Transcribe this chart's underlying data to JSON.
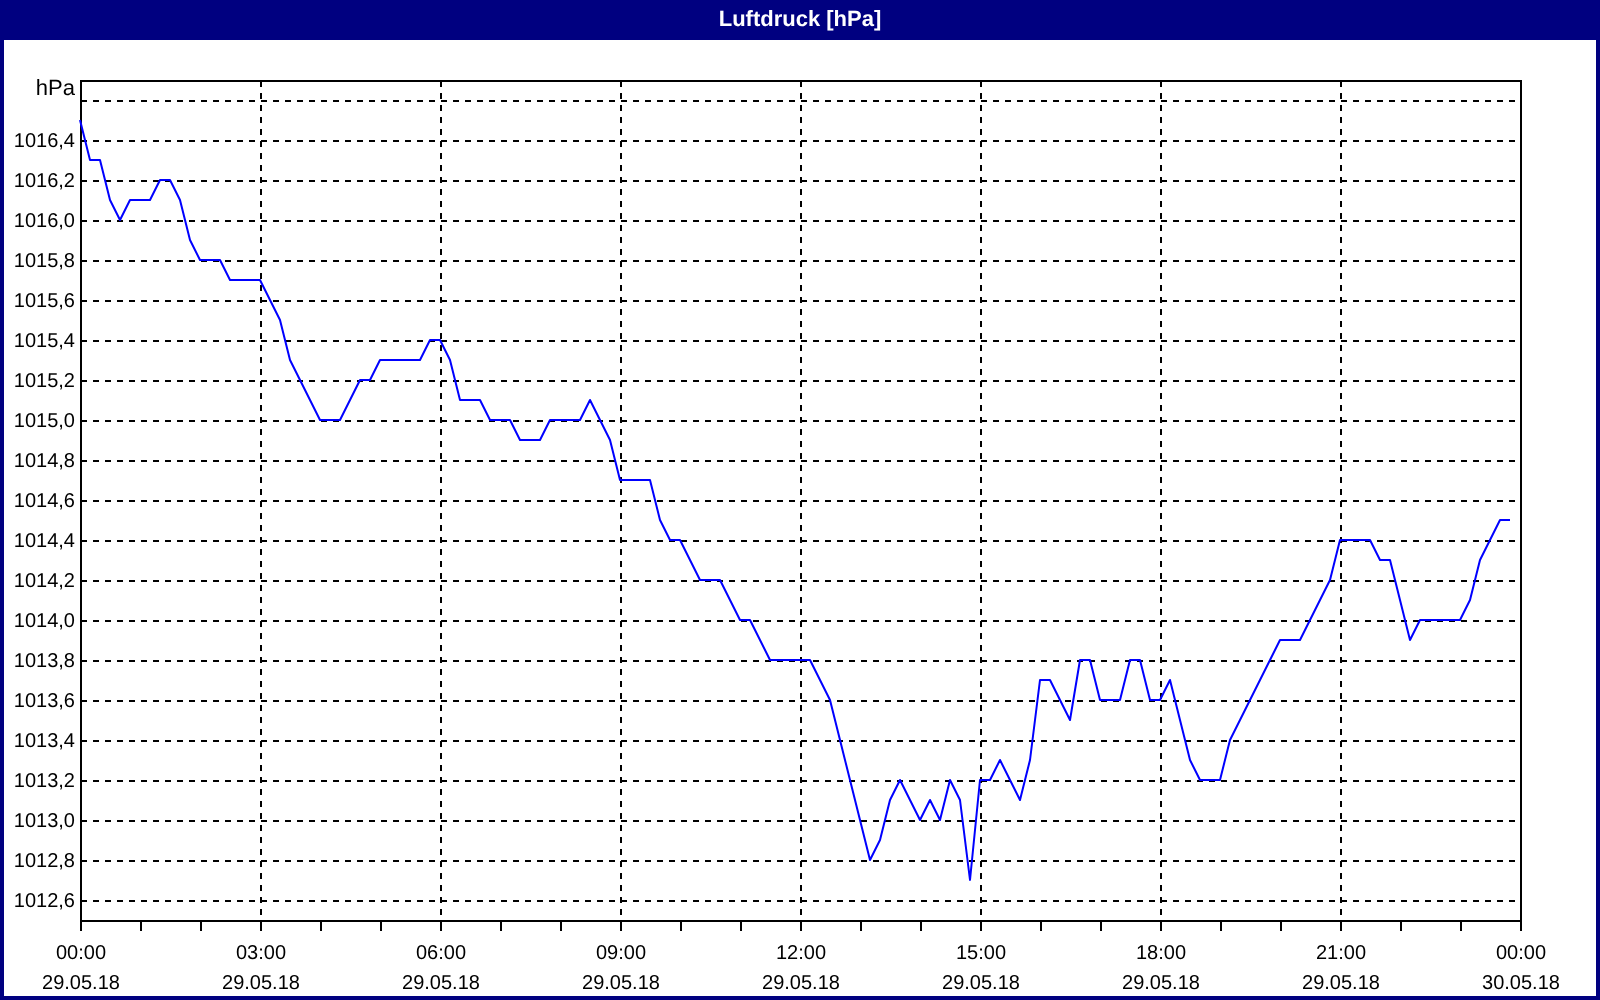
{
  "chart_data": {
    "type": "line",
    "title": "Luftdruck [hPa]",
    "ylabel": "hPa",
    "x": [
      "--05-29T00:00",
      "--05-29T00:10",
      "--05-29T00:20",
      "--05-29T00:30",
      "--05-29T00:40",
      "--05-29T00:50",
      "--05-29T01:00",
      "--05-29T01:10",
      "--05-29T01:20",
      "--05-29T01:30",
      "--05-29T01:40",
      "--05-29T01:50",
      "--05-29T02:00",
      "--05-29T02:10",
      "--05-29T02:20",
      "--05-29T02:30",
      "--05-29T02:40",
      "--05-29T02:50",
      "--05-29T03:00",
      "--05-29T03:10",
      "--05-29T03:20",
      "--05-29T03:30",
      "--05-29T03:40",
      "--05-29T03:50",
      "--05-29T04:00",
      "--05-29T04:10",
      "--05-29T04:20",
      "--05-29T04:30",
      "--05-29T04:40",
      "--05-29T04:50",
      "--05-29T05:00",
      "--05-29T05:10",
      "--05-29T05:20",
      "--05-29T05:30",
      "--05-29T05:40",
      "--05-29T05:50",
      "--05-29T06:00",
      "--05-29T06:10",
      "--05-29T06:20",
      "--05-29T06:30",
      "--05-29T06:40",
      "--05-29T06:50",
      "--05-29T07:00",
      "--05-29T07:10",
      "--05-29T07:20",
      "--05-29T07:30",
      "--05-29T07:40",
      "--05-29T07:50",
      "--05-29T08:00",
      "--05-29T08:10",
      "--05-29T08:20",
      "--05-29T08:30",
      "--05-29T08:40",
      "--05-29T08:50",
      "--05-29T09:00",
      "--05-29T09:10",
      "--05-29T09:20",
      "--05-29T09:30",
      "--05-29T09:40",
      "--05-29T09:50",
      "--05-29T10:00",
      "--05-29T10:10",
      "--05-29T10:20",
      "--05-29T10:30",
      "--05-29T10:40",
      "--05-29T10:50",
      "--05-29T11:00",
      "--05-29T11:10",
      "--05-29T11:20",
      "--05-29T11:30",
      "--05-29T11:40",
      "--05-29T11:50",
      "--05-29T12:00",
      "--05-29T12:10",
      "--05-29T12:20",
      "--05-29T12:30",
      "--05-29T12:40",
      "--05-29T12:50",
      "--05-29T13:00",
      "--05-29T13:10",
      "--05-29T13:20",
      "--05-29T13:30",
      "--05-29T13:40",
      "--05-29T13:50",
      "--05-29T14:00",
      "--05-29T14:10",
      "--05-29T14:20",
      "--05-29T14:30",
      "--05-29T14:40",
      "--05-29T14:50",
      "--05-29T15:00",
      "--05-29T15:10",
      "--05-29T15:20",
      "--05-29T15:30",
      "--05-29T15:40",
      "--05-29T15:50",
      "--05-29T16:00",
      "--05-29T16:10",
      "--05-29T16:20",
      "--05-29T16:30",
      "--05-29T16:40",
      "--05-29T16:50",
      "--05-29T17:00",
      "--05-29T17:10",
      "--05-29T17:20",
      "--05-29T17:30",
      "--05-29T17:40",
      "--05-29T17:50",
      "--05-29T18:00",
      "--05-29T18:10",
      "--05-29T18:20",
      "--05-29T18:30",
      "--05-29T18:40",
      "--05-29T18:50",
      "--05-29T19:00",
      "--05-29T19:10",
      "--05-29T19:20",
      "--05-29T19:30",
      "--05-29T19:40",
      "--05-29T19:50",
      "--05-29T20:00",
      "--05-29T20:10",
      "--05-29T20:20",
      "--05-29T20:30",
      "--05-29T20:40",
      "--05-29T20:50",
      "--05-29T21:00",
      "--05-29T21:10",
      "--05-29T21:20",
      "--05-29T21:30",
      "--05-29T21:40",
      "--05-29T21:50",
      "--05-29T22:00",
      "--05-29T22:10",
      "--05-29T22:20",
      "--05-29T22:30",
      "--05-29T22:40",
      "--05-29T22:50",
      "--05-29T23:00",
      "--05-29T23:10",
      "--05-29T23:20",
      "--05-29T23:30",
      "--05-29T23:40",
      "--05-29T23:50"
    ],
    "series": [
      {
        "color": "#0000ff",
        "values": [
          1016.5,
          1016.3,
          1016.3,
          1016.1,
          1016.0,
          1016.1,
          1016.1,
          1016.1,
          1016.2,
          1016.2,
          1016.1,
          1015.9,
          1015.8,
          1015.8,
          1015.8,
          1015.7,
          1015.7,
          1015.7,
          1015.7,
          1015.6,
          1015.5,
          1015.3,
          1015.2,
          1015.1,
          1015.0,
          1015.0,
          1015.0,
          1015.1,
          1015.2,
          1015.2,
          1015.3,
          1015.3,
          1015.3,
          1015.3,
          1015.3,
          1015.4,
          1015.4,
          1015.3,
          1015.1,
          1015.1,
          1015.1,
          1015.0,
          1015.0,
          1015.0,
          1014.9,
          1014.9,
          1014.9,
          1015.0,
          1015.0,
          1015.0,
          1015.0,
          1015.1,
          1015.0,
          1014.9,
          1014.7,
          1014.7,
          1014.7,
          1014.7,
          1014.5,
          1014.4,
          1014.4,
          1014.3,
          1014.2,
          1014.2,
          1014.2,
          1014.1,
          1014.0,
          1014.0,
          1013.9,
          1013.8,
          1013.8,
          1013.8,
          1013.8,
          1013.8,
          1013.7,
          1013.6,
          1013.4,
          1013.2,
          1013.0,
          1012.8,
          1012.9,
          1013.1,
          1013.2,
          1013.1,
          1013.0,
          1013.1,
          1013.0,
          1013.2,
          1013.1,
          1012.7,
          1013.2,
          1013.2,
          1013.3,
          1013.2,
          1013.1,
          1013.3,
          1013.7,
          1013.7,
          1013.6,
          1013.5,
          1013.8,
          1013.8,
          1013.6,
          1013.6,
          1013.6,
          1013.8,
          1013.8,
          1013.6,
          1013.6,
          1013.7,
          1013.5,
          1013.3,
          1013.2,
          1013.2,
          1013.2,
          1013.4,
          1013.5,
          1013.6,
          1013.7,
          1013.8,
          1013.9,
          1013.9,
          1013.9,
          1014.0,
          1014.1,
          1014.2,
          1014.4,
          1014.4,
          1014.4,
          1014.4,
          1014.3,
          1014.3,
          1014.1,
          1013.9,
          1014.0,
          1014.0,
          1014.0,
          1014.0,
          1014.0,
          1014.1,
          1014.3,
          1014.4,
          1014.5,
          1014.5
        ]
      }
    ],
    "xlim": [
      "--05-29T00:00",
      "--05-30T00:00"
    ],
    "xticks": [
      {
        "value": "--05-29T00:00",
        "label": "00:00\n29.05.18"
      },
      {
        "value": "--05-29T01:00",
        "label": null
      },
      {
        "value": "--05-29T02:00",
        "label": null
      },
      {
        "value": "--05-29T03:00",
        "label": "03:00\n29.05.18"
      },
      {
        "value": "--05-29T04:00",
        "label": null
      },
      {
        "value": "--05-29T05:00",
        "label": null
      },
      {
        "value": "--05-29T06:00",
        "label": "06:00\n29.05.18"
      },
      {
        "value": "--05-29T07:00",
        "label": null
      },
      {
        "value": "--05-29T08:00",
        "label": null
      },
      {
        "value": "--05-29T09:00",
        "label": "09:00\n29.05.18"
      },
      {
        "value": "--05-29T10:00",
        "label": null
      },
      {
        "value": "--05-29T11:00",
        "label": null
      },
      {
        "value": "--05-29T12:00",
        "label": "12:00\n29.05.18"
      },
      {
        "value": "--05-29T13:00",
        "label": null
      },
      {
        "value": "--05-29T14:00",
        "label": null
      },
      {
        "value": "--05-29T15:00",
        "label": "15:00\n29.05.18"
      },
      {
        "value": "--05-29T16:00",
        "label": null
      },
      {
        "value": "--05-29T17:00",
        "label": null
      },
      {
        "value": "--05-29T18:00",
        "label": "18:00\n29.05.18"
      },
      {
        "value": "--05-29T19:00",
        "label": null
      },
      {
        "value": "--05-29T20:00",
        "label": null
      },
      {
        "value": "--05-29T21:00",
        "label": "21:00\n29.05.18"
      },
      {
        "value": "--05-29T22:00",
        "label": null
      },
      {
        "value": "--05-29T23:00",
        "label": null
      },
      {
        "value": "--05-30T00:00",
        "label": "00:00\n30.05.18"
      }
    ],
    "ylim": [
      1012.5,
      1016.7
    ],
    "yticks": [
      {
        "value": 1012.6,
        "label": "1012,6"
      },
      {
        "value": 1012.8,
        "label": "1012,8"
      },
      {
        "value": 1013.0,
        "label": "1013,0"
      },
      {
        "value": 1013.2,
        "label": "1013,2"
      },
      {
        "value": 1013.4,
        "label": "1013,4"
      },
      {
        "value": 1013.6,
        "label": "1013,6"
      },
      {
        "value": 1013.8,
        "label": "1013,8"
      },
      {
        "value": 1014.0,
        "label": "1014,0"
      },
      {
        "value": 1014.2,
        "label": "1014,2"
      },
      {
        "value": 1014.4,
        "label": "1014,4"
      },
      {
        "value": 1014.6,
        "label": "1014,6"
      },
      {
        "value": 1014.8,
        "label": "1014,8"
      },
      {
        "value": 1015.0,
        "label": "1015,0"
      },
      {
        "value": 1015.2,
        "label": "1015,2"
      },
      {
        "value": 1015.4,
        "label": "1015,4"
      },
      {
        "value": 1015.6,
        "label": "1015,6"
      },
      {
        "value": 1015.8,
        "label": "1015,8"
      },
      {
        "value": 1016.0,
        "label": "1016,0"
      },
      {
        "value": 1016.2,
        "label": "1016,2"
      },
      {
        "value": 1016.4,
        "label": "1016,4"
      },
      {
        "value": 1016.6,
        "label": null
      }
    ],
    "grid": true
  }
}
